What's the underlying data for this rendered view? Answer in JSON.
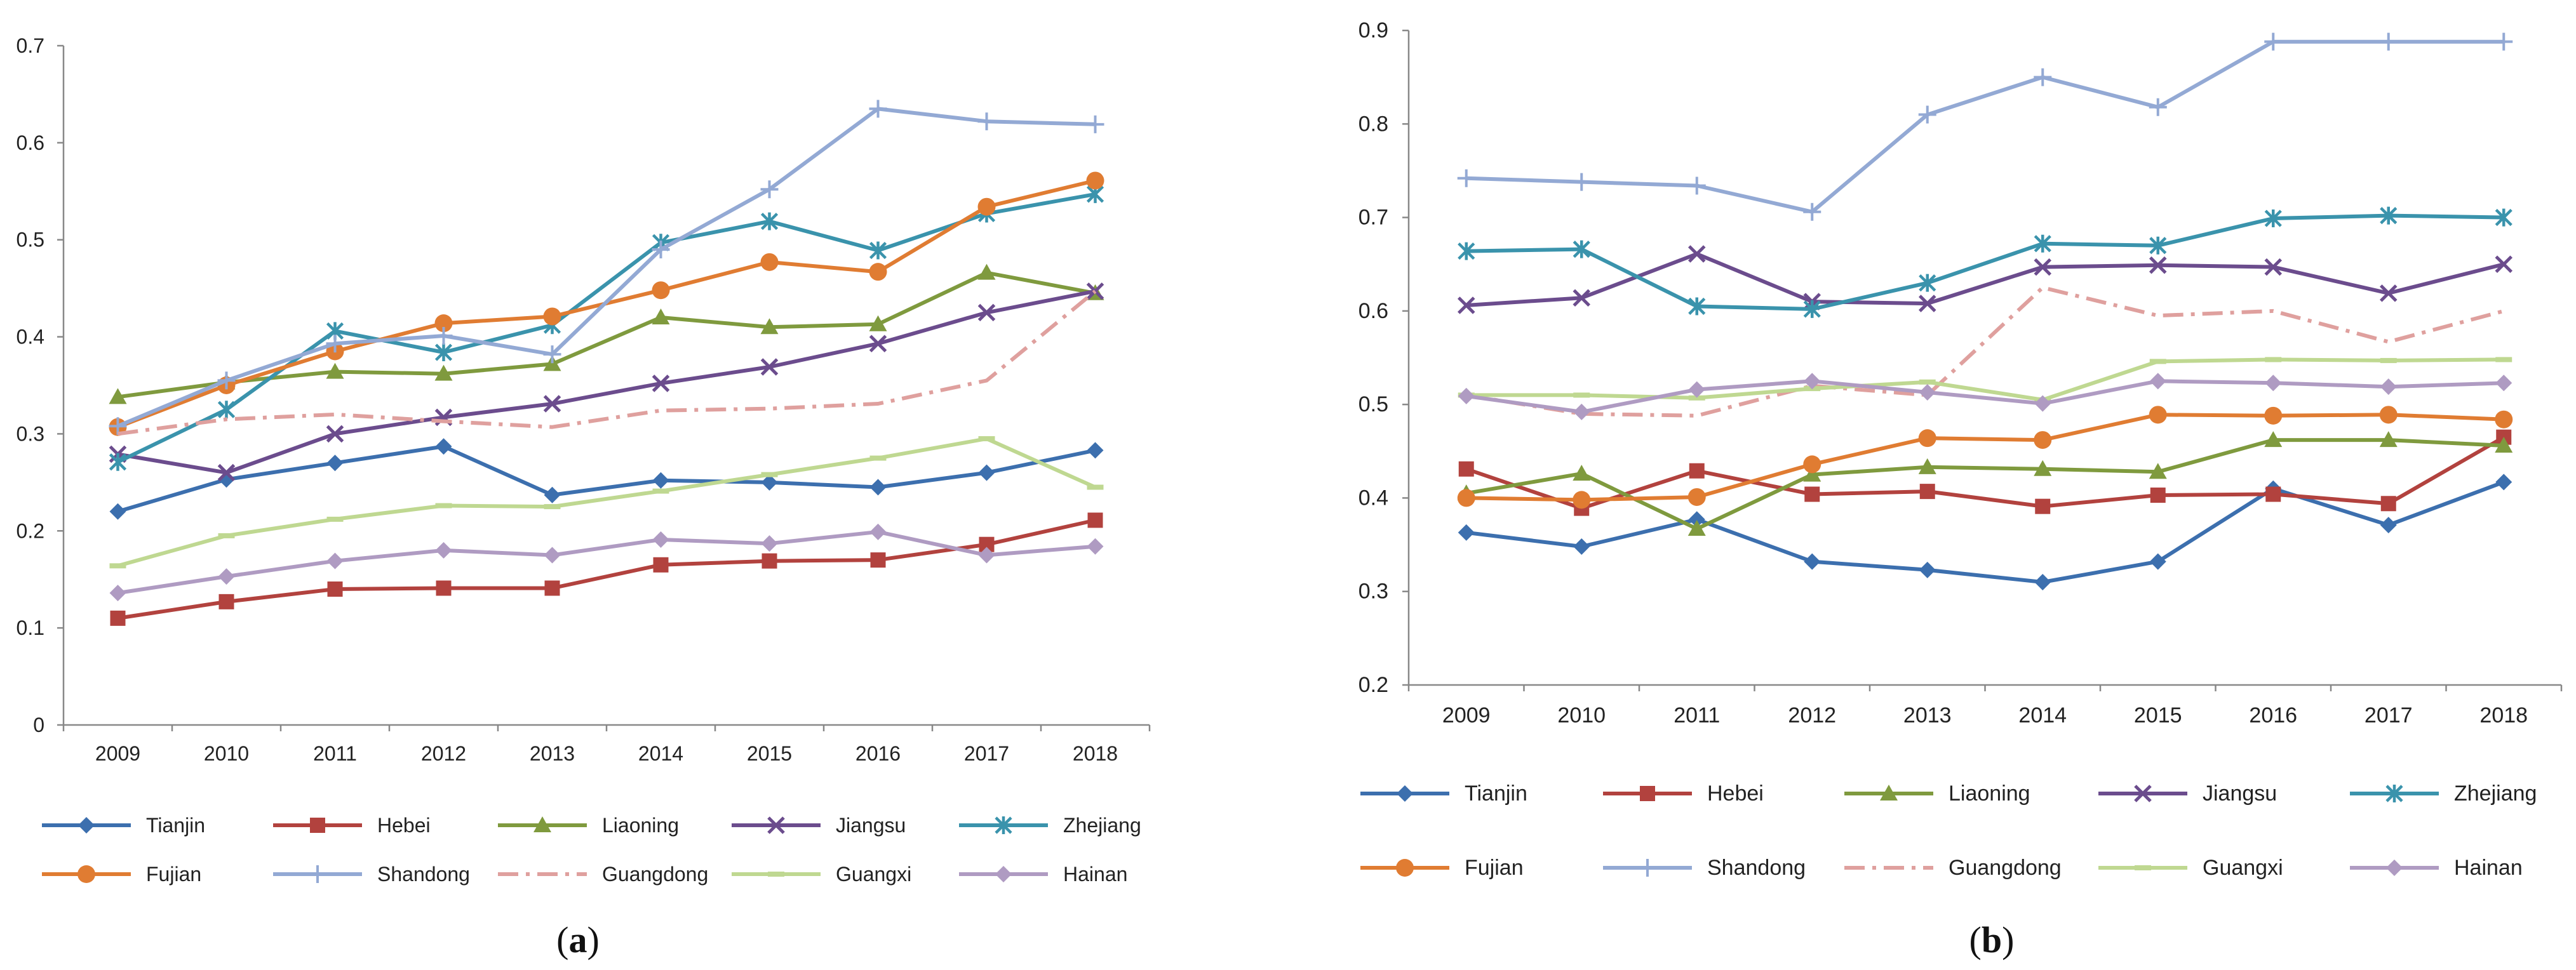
{
  "chart_data": [
    {
      "type": "line",
      "panel_label": "(a)",
      "panel_letter": "a",
      "panel_open": "(",
      "panel_close": ")",
      "categories": [
        "2009",
        "2010",
        "2011",
        "2012",
        "2013",
        "2014",
        "2015",
        "2016",
        "2017",
        "2018"
      ],
      "ylim": [
        0,
        0.7
      ],
      "yticks": [
        "0",
        "0.1",
        "0.2",
        "0.3",
        "0.4",
        "0.5",
        "0.6",
        "0.7"
      ],
      "grid": false,
      "legend": "bottom",
      "series": [
        {
          "name": "Tianjin",
          "color": "#3C6FAE",
          "marker": "diamond",
          "dash": false,
          "values": [
            0.22,
            0.253,
            0.27,
            0.287,
            0.237,
            0.252,
            0.25,
            0.245,
            0.26,
            0.283
          ]
        },
        {
          "name": "Hebei",
          "color": "#B2423E",
          "marker": "square",
          "dash": false,
          "values": [
            0.11,
            0.127,
            0.14,
            0.141,
            0.141,
            0.165,
            0.169,
            0.17,
            0.186,
            0.211
          ]
        },
        {
          "name": "Liaoning",
          "color": "#7F9A3E",
          "marker": "triangle",
          "dash": false,
          "values": [
            0.338,
            0.353,
            0.364,
            0.362,
            0.372,
            0.42,
            0.41,
            0.413,
            0.466,
            0.445
          ]
        },
        {
          "name": "Jiangsu",
          "color": "#6B4C8D",
          "marker": "x",
          "dash": false,
          "values": [
            0.279,
            0.26,
            0.3,
            0.317,
            0.331,
            0.352,
            0.369,
            0.393,
            0.425,
            0.447
          ]
        },
        {
          "name": "Zhejiang",
          "color": "#3A93AC",
          "marker": "star",
          "dash": false,
          "values": [
            0.271,
            0.325,
            0.406,
            0.384,
            0.412,
            0.497,
            0.519,
            0.489,
            0.527,
            0.547
          ]
        },
        {
          "name": "Fujian",
          "color": "#E07C32",
          "marker": "circle",
          "dash": false,
          "values": [
            0.307,
            0.35,
            0.385,
            0.414,
            0.421,
            0.448,
            0.477,
            0.467,
            0.534,
            0.561
          ]
        },
        {
          "name": "Shandong",
          "color": "#93A9D4",
          "marker": "plus",
          "dash": false,
          "values": [
            0.308,
            0.355,
            0.393,
            0.401,
            0.382,
            0.49,
            0.552,
            0.635,
            0.622,
            0.619
          ]
        },
        {
          "name": "Guangdong",
          "color": "#DFA09E",
          "marker": "none",
          "dash": true,
          "values": [
            0.3,
            0.315,
            0.32,
            0.313,
            0.307,
            0.324,
            0.326,
            0.331,
            0.355,
            0.447
          ]
        },
        {
          "name": "Guangxi",
          "color": "#BFD891",
          "marker": "dash",
          "dash": false,
          "values": [
            0.164,
            0.195,
            0.212,
            0.226,
            0.225,
            0.241,
            0.258,
            0.275,
            0.295,
            0.245
          ]
        },
        {
          "name": "Hainan",
          "color": "#AF9BC2",
          "marker": "diamond",
          "dash": false,
          "values": [
            0.136,
            0.153,
            0.169,
            0.18,
            0.175,
            0.191,
            0.187,
            0.199,
            0.175,
            0.184
          ]
        }
      ]
    },
    {
      "type": "line",
      "panel_label": "(b)",
      "panel_letter": "b",
      "panel_open": "(",
      "panel_close": ")",
      "categories": [
        "2009",
        "2010",
        "2011",
        "2012",
        "2013",
        "2014",
        "2015",
        "2016",
        "2017",
        "2018"
      ],
      "ylim": [
        0.2,
        0.9
      ],
      "yticks": [
        "0.2",
        "0.3",
        "0.4",
        "0.5",
        "0.6",
        "0.7",
        "0.8",
        "0.9"
      ],
      "grid": false,
      "legend": "bottom",
      "series": [
        {
          "name": "Tianjin",
          "color": "#3C6FAE",
          "marker": "diamond",
          "dash": false,
          "values": [
            0.363,
            0.348,
            0.377,
            0.332,
            0.323,
            0.31,
            0.332,
            0.41,
            0.371,
            0.417
          ]
        },
        {
          "name": "Hebei",
          "color": "#B2423E",
          "marker": "square",
          "dash": false,
          "values": [
            0.431,
            0.389,
            0.429,
            0.404,
            0.407,
            0.391,
            0.403,
            0.404,
            0.394,
            0.465
          ]
        },
        {
          "name": "Liaoning",
          "color": "#7F9A3E",
          "marker": "triangle",
          "dash": false,
          "values": [
            0.405,
            0.426,
            0.367,
            0.425,
            0.433,
            0.431,
            0.428,
            0.462,
            0.462,
            0.456
          ]
        },
        {
          "name": "Jiangsu",
          "color": "#6B4C8D",
          "marker": "x",
          "dash": false,
          "values": [
            0.606,
            0.614,
            0.661,
            0.61,
            0.608,
            0.647,
            0.649,
            0.647,
            0.619,
            0.65
          ]
        },
        {
          "name": "Zhejiang",
          "color": "#3A93AC",
          "marker": "star",
          "dash": false,
          "values": [
            0.664,
            0.666,
            0.605,
            0.602,
            0.63,
            0.672,
            0.67,
            0.699,
            0.702,
            0.7
          ]
        },
        {
          "name": "Fujian",
          "color": "#E07C32",
          "marker": "circle",
          "dash": false,
          "values": [
            0.4,
            0.398,
            0.401,
            0.436,
            0.464,
            0.462,
            0.489,
            0.488,
            0.489,
            0.484
          ]
        },
        {
          "name": "Shandong",
          "color": "#93A9D4",
          "marker": "plus",
          "dash": false,
          "values": [
            0.742,
            0.738,
            0.734,
            0.706,
            0.81,
            0.85,
            0.818,
            0.888,
            0.888,
            0.888
          ]
        },
        {
          "name": "Guangdong",
          "color": "#DFA09E",
          "marker": "none",
          "dash": true,
          "values": [
            0.51,
            0.49,
            0.488,
            0.52,
            0.51,
            0.625,
            0.595,
            0.6,
            0.567,
            0.6
          ]
        },
        {
          "name": "Guangxi",
          "color": "#BFD891",
          "marker": "dash",
          "dash": false,
          "values": [
            0.51,
            0.51,
            0.507,
            0.517,
            0.524,
            0.505,
            0.546,
            0.548,
            0.547,
            0.548
          ]
        },
        {
          "name": "Hainan",
          "color": "#AF9BC2",
          "marker": "diamond",
          "dash": false,
          "values": [
            0.509,
            0.492,
            0.516,
            0.525,
            0.513,
            0.501,
            0.525,
            0.523,
            0.519,
            0.523
          ]
        }
      ]
    }
  ]
}
